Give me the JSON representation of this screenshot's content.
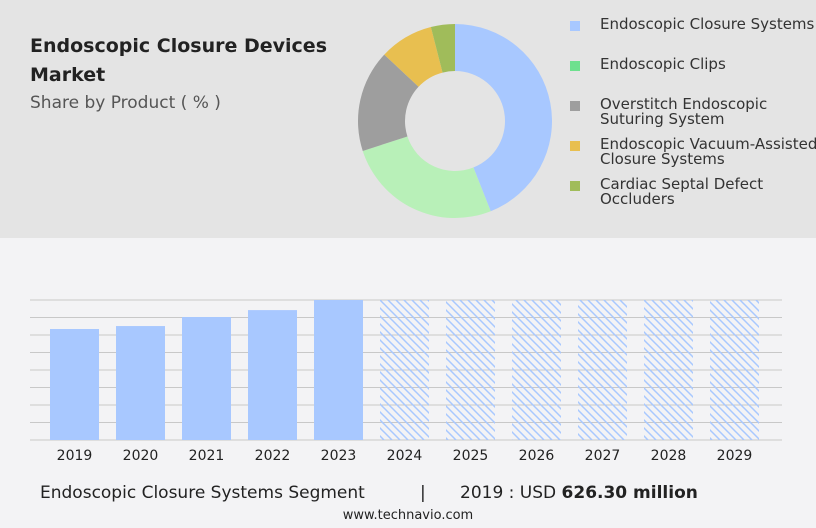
{
  "header": {
    "title": "Endoscopic Closure Devices Market",
    "subtitle": "Share by Product ( % )"
  },
  "chart_data": [
    {
      "type": "pie",
      "style": "donut",
      "legend_placement": "right",
      "slices": [
        {
          "name": "Endoscopic Closure Systems",
          "value": 44,
          "color": "#a8c8ff"
        },
        {
          "name": "Endoscopic Clips",
          "value": 26,
          "color": "#b8f0b8",
          "legend_color": "#6ee08e"
        },
        {
          "name": "Overstitch Endoscopic Suturing System",
          "value": 17,
          "color": "#9e9e9e"
        },
        {
          "name": "Endoscopic Vacuum-Assisted Closure Systems",
          "value": 9,
          "color": "#e8bf50"
        },
        {
          "name": "Cardiac Septal Defect Occluders",
          "value": 4,
          "color": "#a0bc5a"
        }
      ]
    },
    {
      "type": "bar",
      "categories": [
        "2019",
        "2020",
        "2021",
        "2022",
        "2023",
        "2024",
        "2025",
        "2026",
        "2027",
        "2028",
        "2029"
      ],
      "values": [
        626.3,
        643,
        694,
        733,
        790,
        null,
        null,
        null,
        null,
        null,
        null
      ],
      "forecast_hatched": [
        "2024",
        "2025",
        "2026",
        "2027",
        "2028",
        "2029"
      ],
      "color": "#a8c8ff",
      "grid": true,
      "ylim": [
        0,
        790
      ]
    }
  ],
  "footer": {
    "segment": "Endoscopic Closure Systems Segment",
    "separator": "|",
    "year_label": "2019 : USD",
    "value": "626.30 million",
    "site": "www.technavio.com"
  }
}
